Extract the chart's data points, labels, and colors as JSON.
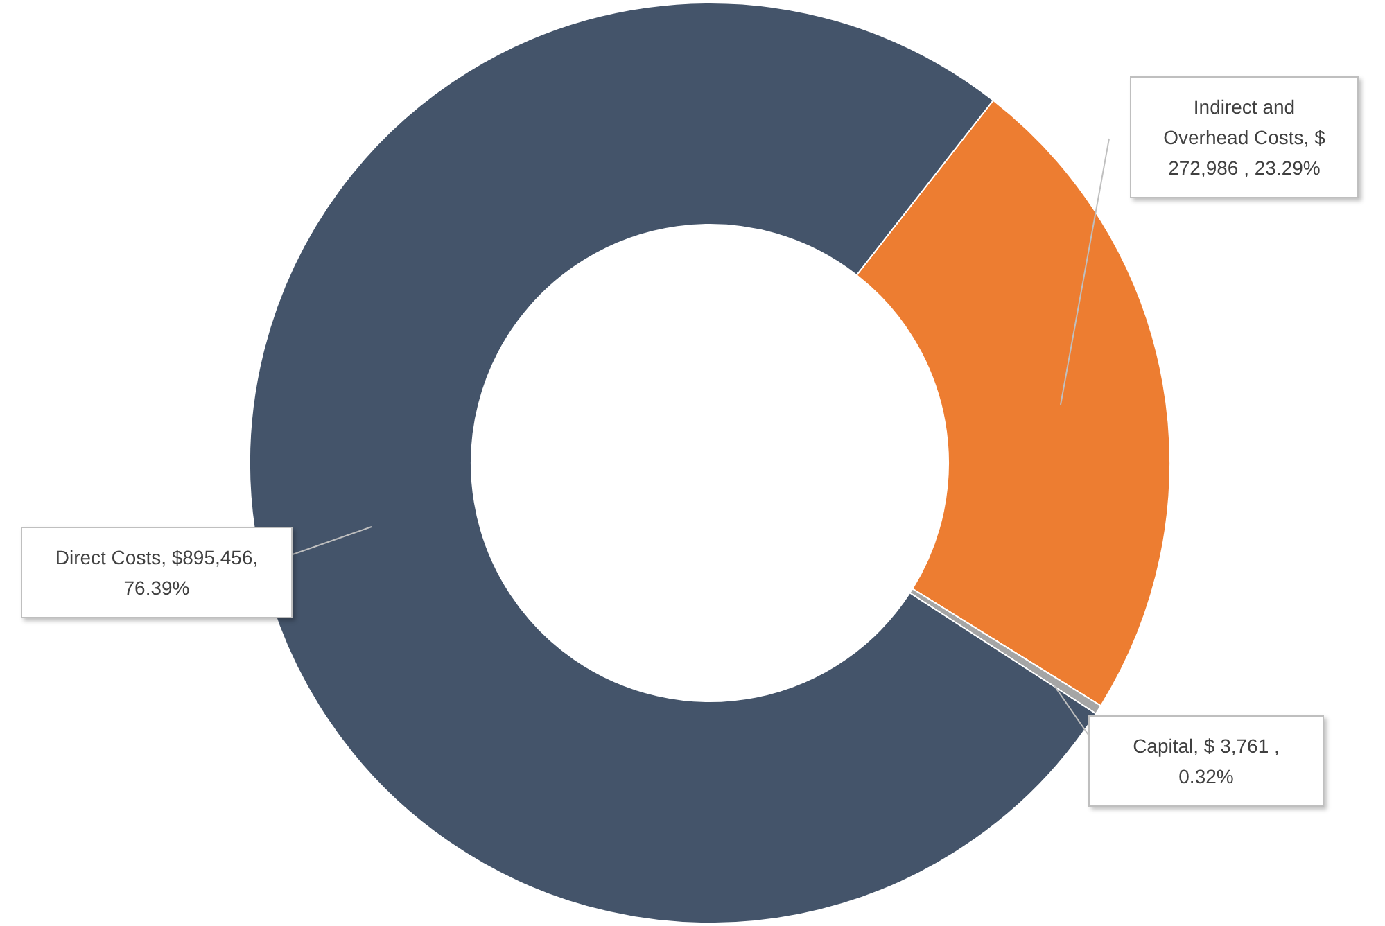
{
  "chart_data": {
    "type": "donut",
    "categories": [
      "Indirect and Overhead Costs",
      "Capital",
      "Direct Costs"
    ],
    "values": [
      272986,
      3761,
      895456
    ],
    "colors": [
      "#ed7d31",
      "#a5a5a5",
      "#44546a"
    ],
    "value_labels": [
      "$ 272,986 , 23.29%",
      "$ 3,761 , 0.32%",
      "$895,456, 76.39%"
    ],
    "legend": false
  }
}
